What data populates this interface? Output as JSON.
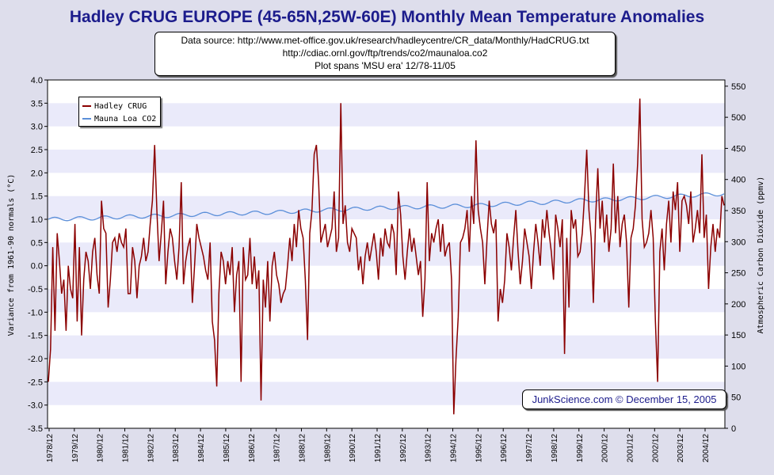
{
  "chart_data": {
    "type": "line",
    "title": "Hadley CRUG EUROPE (45-65N,25W-60E) Monthly Mean Temperature Anomalies",
    "source_lines": [
      "Data source: http://www.met-office.gov.uk/research/hadleycentre/CR_data/Monthly/HadCRUG.txt",
      "http://cdiac.ornl.gov/ftp/trends/co2/maunaloa.co2",
      "Plot spans 'MSU era' 12/78-11/05"
    ],
    "credit": "JunkScience.com © December 15, 2005",
    "ylabel_left": "Variance from 1961-90 normals (°C)",
    "ylabel_right": "Atmospheric Carbon Dioxide (ppmv)",
    "ylim_left": [
      -3.5,
      4.0
    ],
    "ylim_right": [
      0,
      560
    ],
    "yticks_left": [
      "-3.5",
      "-3.0",
      "-2.5",
      "-2.0",
      "-1.5",
      "-1.0",
      "-0.5",
      "0.0",
      "0.5",
      "1.0",
      "1.5",
      "2.0",
      "2.5",
      "3.0",
      "3.5",
      "4.0"
    ],
    "yticks_right": [
      "0",
      "50",
      "100",
      "150",
      "200",
      "250",
      "300",
      "350",
      "400",
      "450",
      "500",
      "550"
    ],
    "xticks": [
      "1978/12",
      "1979/12",
      "1980/12",
      "1981/12",
      "1982/12",
      "1983/12",
      "1984/12",
      "1985/12",
      "1986/12",
      "1987/12",
      "1988/12",
      "1989/12",
      "1990/12",
      "1991/12",
      "1992/12",
      "1993/12",
      "1994/12",
      "1995/12",
      "1996/12",
      "1997/12",
      "1998/12",
      "1999/12",
      "2000/12",
      "2001/12",
      "2002/12",
      "2003/12",
      "2004/12"
    ],
    "legend": [
      "Hadley CRUG",
      "Mauna Loa CO2"
    ],
    "colors": {
      "temperature": "#8b0000",
      "co2": "#5b8fd9",
      "band": "#eaeafa",
      "title": "#1c1c8c"
    },
    "series": [
      {
        "name": "Hadley CRUG",
        "axis": "left",
        "values": [
          -2.5,
          -1.8,
          0.4,
          -1.4,
          0.7,
          0.1,
          -0.6,
          -0.3,
          -1.4,
          0.0,
          -0.5,
          -0.7,
          0.9,
          -1.2,
          0.4,
          -1.5,
          -0.3,
          0.3,
          0.1,
          -0.5,
          0.3,
          0.6,
          -0.2,
          -0.6,
          1.4,
          0.8,
          0.7,
          -0.9,
          -0.3,
          0.5,
          0.6,
          0.3,
          0.7,
          0.5,
          0.4,
          0.8,
          -0.6,
          -0.6,
          0.4,
          0.1,
          -0.7,
          0.0,
          0.2,
          0.6,
          0.1,
          0.3,
          0.9,
          1.4,
          2.6,
          1.2,
          0.1,
          0.7,
          1.4,
          -0.4,
          0.3,
          0.8,
          0.6,
          0.1,
          -0.3,
          0.4,
          1.8,
          -0.4,
          0.1,
          0.4,
          0.6,
          -0.8,
          0.0,
          0.9,
          0.6,
          0.4,
          0.2,
          -0.1,
          -0.3,
          0.5,
          -1.2,
          -1.6,
          -2.6,
          -0.6,
          0.3,
          0.1,
          -0.4,
          0.1,
          -0.2,
          0.4,
          -1.0,
          -0.2,
          0.1,
          -2.5,
          0.4,
          -0.3,
          -0.2,
          0.6,
          -0.4,
          0.2,
          -0.5,
          -0.1,
          -2.9,
          -0.3,
          -0.9,
          0.1,
          -1.2,
          0.0,
          0.3,
          -0.2,
          -0.4,
          -0.8,
          -0.6,
          -0.5,
          0.0,
          0.6,
          0.1,
          0.9,
          0.4,
          1.2,
          0.8,
          0.6,
          -0.3,
          -1.6,
          0.7,
          1.2,
          2.4,
          2.6,
          1.8,
          0.5,
          0.7,
          0.9,
          0.4,
          0.6,
          0.8,
          1.6,
          0.3,
          0.6,
          3.5,
          0.9,
          1.3,
          0.5,
          0.3,
          0.8,
          0.7,
          0.6,
          -0.1,
          0.2,
          -0.4,
          0.2,
          0.5,
          0.1,
          0.4,
          0.7,
          0.3,
          -0.3,
          0.6,
          0.2,
          0.8,
          0.5,
          0.4,
          0.9,
          0.7,
          -0.2,
          1.6,
          1.1,
          0.2,
          -0.3,
          0.3,
          0.8,
          0.3,
          0.6,
          0.2,
          -0.2,
          0.1,
          -1.1,
          -0.3,
          1.8,
          0.1,
          0.7,
          0.5,
          0.8,
          1.0,
          0.3,
          0.9,
          0.2,
          0.4,
          0.5,
          -0.3,
          -3.2,
          -2.0,
          -1.1,
          0.5,
          0.6,
          0.8,
          1.2,
          0.3,
          1.5,
          0.9,
          2.7,
          1.2,
          0.8,
          0.5,
          -0.4,
          0.6,
          1.4,
          0.9,
          0.7,
          1.0,
          -1.2,
          -0.5,
          -0.8,
          -0.3,
          0.7,
          0.4,
          -0.1,
          0.6,
          1.2,
          0.3,
          -0.4,
          0.1,
          0.8,
          0.5,
          0.2,
          -0.5,
          0.3,
          0.9,
          0.5,
          0.0,
          1.0,
          0.6,
          1.2,
          0.7,
          0.3,
          -0.3,
          1.1,
          0.8,
          0.4,
          1.0,
          -1.9,
          0.6,
          -0.9,
          1.2,
          0.8,
          1.0,
          0.2,
          0.3,
          0.7,
          1.5,
          2.5,
          1.2,
          0.6,
          -0.8,
          1.0,
          2.1,
          0.8,
          1.4,
          0.5,
          1.1,
          0.3,
          0.8,
          2.2,
          0.7,
          1.5,
          0.4,
          0.9,
          1.1,
          0.5,
          -0.9,
          0.6,
          0.8,
          1.3,
          2.2,
          3.6,
          1.0,
          0.4,
          0.5,
          0.7,
          1.2,
          0.6,
          -1.2,
          -2.5,
          0.3,
          0.8,
          -0.1,
          0.9,
          1.4,
          0.5,
          1.6,
          1.2,
          1.8,
          0.3,
          1.4,
          1.5,
          1.3,
          0.9,
          1.6,
          0.5,
          0.8,
          1.2,
          0.7,
          2.4,
          0.6,
          1.1,
          -0.5,
          0.4,
          0.9,
          0.3,
          0.8,
          0.6,
          1.5,
          1.3
        ]
      },
      {
        "name": "Mauna Loa CO2",
        "axis": "right",
        "values": [
          336,
          337,
          338,
          340,
          341,
          342,
          344,
          345,
          346,
          347,
          349,
          351,
          352,
          354,
          355,
          356,
          357,
          358,
          360,
          362,
          363,
          366,
          367,
          369,
          371,
          373,
          375,
          377
        ]
      }
    ]
  }
}
